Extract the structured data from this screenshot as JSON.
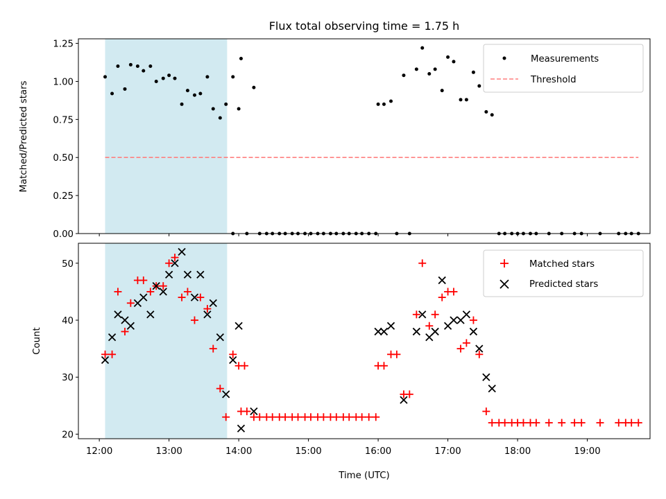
{
  "chart_data": [
    {
      "type": "scatter",
      "title": "Flux total observing time = 1.75 h",
      "ylabel": "Matched/Predicted stars",
      "xlabel": "",
      "xlim": [
        "11:42",
        "19:54"
      ],
      "ylim": [
        0,
        1.28
      ],
      "yticks": [
        "0.00",
        "0.25",
        "0.50",
        "0.75",
        "1.00",
        "1.25"
      ],
      "shaded_region": [
        "12:05",
        "13:50"
      ],
      "shaded_color": "#add8e6",
      "legend_position": "upper right",
      "series": [
        {
          "name": "Measurements",
          "marker": "dot",
          "color": "#000000",
          "points": [
            [
              "12:05",
              1.03
            ],
            [
              "12:11",
              0.92
            ],
            [
              "12:16",
              1.1
            ],
            [
              "12:22",
              0.95
            ],
            [
              "12:27",
              1.11
            ],
            [
              "12:33",
              1.1
            ],
            [
              "12:38",
              1.07
            ],
            [
              "12:44",
              1.1
            ],
            [
              "12:49",
              1.0
            ],
            [
              "12:55",
              1.02
            ],
            [
              "13:00",
              1.04
            ],
            [
              "13:05",
              1.02
            ],
            [
              "13:11",
              0.85
            ],
            [
              "13:16",
              0.94
            ],
            [
              "13:22",
              0.91
            ],
            [
              "13:27",
              0.92
            ],
            [
              "13:33",
              1.03
            ],
            [
              "13:38",
              0.82
            ],
            [
              "13:44",
              0.76
            ],
            [
              "13:49",
              0.85
            ],
            [
              "13:55",
              1.03
            ],
            [
              "14:00",
              0.82
            ],
            [
              "13:55",
              0.0
            ],
            [
              "14:02",
              1.15
            ],
            [
              "14:07",
              0.0
            ],
            [
              "14:13",
              0.96
            ],
            [
              "14:18",
              0.0
            ],
            [
              "14:24",
              0.0
            ],
            [
              "14:29",
              0.0
            ],
            [
              "14:35",
              0.0
            ],
            [
              "14:40",
              0.0
            ],
            [
              "14:46",
              0.0
            ],
            [
              "14:51",
              0.0
            ],
            [
              "14:57",
              0.0
            ],
            [
              "15:02",
              0.0
            ],
            [
              "15:08",
              0.0
            ],
            [
              "15:13",
              0.0
            ],
            [
              "15:19",
              0.0
            ],
            [
              "15:24",
              0.0
            ],
            [
              "15:30",
              0.0
            ],
            [
              "15:35",
              0.0
            ],
            [
              "15:41",
              0.0
            ],
            [
              "15:46",
              0.0
            ],
            [
              "15:52",
              0.0
            ],
            [
              "15:58",
              0.0
            ],
            [
              "16:00",
              0.85
            ],
            [
              "16:05",
              0.85
            ],
            [
              "16:11",
              0.87
            ],
            [
              "16:16",
              0.0
            ],
            [
              "16:22",
              1.04
            ],
            [
              "16:27",
              0.0
            ],
            [
              "16:33",
              1.08
            ],
            [
              "16:38",
              1.22
            ],
            [
              "16:44",
              1.05
            ],
            [
              "16:49",
              1.08
            ],
            [
              "16:55",
              0.94
            ],
            [
              "17:00",
              1.16
            ],
            [
              "17:05",
              1.13
            ],
            [
              "17:11",
              0.88
            ],
            [
              "17:16",
              0.88
            ],
            [
              "17:22",
              1.06
            ],
            [
              "17:27",
              0.97
            ],
            [
              "17:33",
              0.8
            ],
            [
              "17:38",
              0.78
            ],
            [
              "17:44",
              0.0
            ],
            [
              "17:49",
              0.0
            ],
            [
              "17:55",
              0.0
            ],
            [
              "18:00",
              0.0
            ],
            [
              "18:05",
              0.0
            ],
            [
              "18:11",
              0.0
            ],
            [
              "18:16",
              0.0
            ],
            [
              "18:27",
              0.0
            ],
            [
              "18:38",
              0.0
            ],
            [
              "18:49",
              0.0
            ],
            [
              "18:55",
              0.0
            ],
            [
              "19:11",
              0.0
            ],
            [
              "19:27",
              0.0
            ],
            [
              "19:33",
              0.0
            ],
            [
              "19:38",
              0.0
            ],
            [
              "19:44",
              0.0
            ]
          ]
        },
        {
          "name": "Threshold",
          "marker": "dashed-line",
          "color": "#ff7f7f",
          "points": [
            [
              "12:05",
              0.5
            ],
            [
              "19:44",
              0.5
            ]
          ]
        }
      ]
    },
    {
      "type": "scatter",
      "title": "",
      "ylabel": "Count",
      "xlabel": "Time (UTC)",
      "xlim": [
        "11:42",
        "19:54"
      ],
      "ylim": [
        19.2,
        53.5
      ],
      "yticks": [
        "20",
        "30",
        "40",
        "50"
      ],
      "xticks": [
        "12:00",
        "13:00",
        "14:00",
        "15:00",
        "16:00",
        "17:00",
        "18:00",
        "19:00"
      ],
      "shaded_region": [
        "12:05",
        "13:50"
      ],
      "shaded_color": "#add8e6",
      "legend_position": "upper right",
      "series": [
        {
          "name": "Matched stars",
          "marker": "plus",
          "color": "#ff0000",
          "points": [
            [
              "12:05",
              34
            ],
            [
              "12:11",
              34
            ],
            [
              "12:16",
              45
            ],
            [
              "12:22",
              38
            ],
            [
              "12:27",
              43
            ],
            [
              "12:33",
              47
            ],
            [
              "12:38",
              47
            ],
            [
              "12:44",
              45
            ],
            [
              "12:49",
              46
            ],
            [
              "12:55",
              46
            ],
            [
              "13:00",
              50
            ],
            [
              "13:05",
              51
            ],
            [
              "13:11",
              44
            ],
            [
              "13:16",
              45
            ],
            [
              "13:22",
              40
            ],
            [
              "13:27",
              44
            ],
            [
              "13:33",
              42
            ],
            [
              "13:38",
              35
            ],
            [
              "13:44",
              28
            ],
            [
              "13:49",
              23
            ],
            [
              "13:55",
              34
            ],
            [
              "14:00",
              32
            ],
            [
              "14:05",
              32
            ],
            [
              "14:02",
              24
            ],
            [
              "14:07",
              24
            ],
            [
              "14:13",
              23
            ],
            [
              "14:18",
              23
            ],
            [
              "14:24",
              23
            ],
            [
              "14:29",
              23
            ],
            [
              "14:35",
              23
            ],
            [
              "14:40",
              23
            ],
            [
              "14:46",
              23
            ],
            [
              "14:51",
              23
            ],
            [
              "14:57",
              23
            ],
            [
              "15:02",
              23
            ],
            [
              "15:08",
              23
            ],
            [
              "15:13",
              23
            ],
            [
              "15:19",
              23
            ],
            [
              "15:24",
              23
            ],
            [
              "15:30",
              23
            ],
            [
              "15:35",
              23
            ],
            [
              "15:41",
              23
            ],
            [
              "15:46",
              23
            ],
            [
              "15:52",
              23
            ],
            [
              "15:58",
              23
            ],
            [
              "16:00",
              32
            ],
            [
              "16:05",
              32
            ],
            [
              "16:11",
              34
            ],
            [
              "16:16",
              34
            ],
            [
              "16:22",
              27
            ],
            [
              "16:27",
              27
            ],
            [
              "16:33",
              41
            ],
            [
              "16:38",
              50
            ],
            [
              "16:44",
              39
            ],
            [
              "16:49",
              41
            ],
            [
              "16:55",
              44
            ],
            [
              "17:00",
              45
            ],
            [
              "17:05",
              45
            ],
            [
              "17:11",
              35
            ],
            [
              "17:16",
              36
            ],
            [
              "17:22",
              40
            ],
            [
              "17:27",
              34
            ],
            [
              "17:33",
              24
            ],
            [
              "17:38",
              22
            ],
            [
              "17:44",
              22
            ],
            [
              "17:49",
              22
            ],
            [
              "17:55",
              22
            ],
            [
              "18:00",
              22
            ],
            [
              "18:05",
              22
            ],
            [
              "18:11",
              22
            ],
            [
              "18:16",
              22
            ],
            [
              "18:27",
              22
            ],
            [
              "18:38",
              22
            ],
            [
              "18:49",
              22
            ],
            [
              "18:55",
              22
            ],
            [
              "19:11",
              22
            ],
            [
              "19:27",
              22
            ],
            [
              "19:33",
              22
            ],
            [
              "19:38",
              22
            ],
            [
              "19:44",
              22
            ]
          ]
        },
        {
          "name": "Predicted stars",
          "marker": "x",
          "color": "#000000",
          "points": [
            [
              "12:05",
              33
            ],
            [
              "12:11",
              37
            ],
            [
              "12:16",
              41
            ],
            [
              "12:22",
              40
            ],
            [
              "12:27",
              39
            ],
            [
              "12:33",
              43
            ],
            [
              "12:38",
              44
            ],
            [
              "12:44",
              41
            ],
            [
              "12:49",
              46
            ],
            [
              "12:55",
              45
            ],
            [
              "13:00",
              48
            ],
            [
              "13:05",
              50
            ],
            [
              "13:11",
              52
            ],
            [
              "13:16",
              48
            ],
            [
              "13:22",
              44
            ],
            [
              "13:27",
              48
            ],
            [
              "13:33",
              41
            ],
            [
              "13:38",
              43
            ],
            [
              "13:44",
              37
            ],
            [
              "13:49",
              27
            ],
            [
              "13:55",
              33
            ],
            [
              "14:00",
              39
            ],
            [
              "14:02",
              21
            ],
            [
              "14:13",
              24
            ],
            [
              "16:00",
              38
            ],
            [
              "16:05",
              38
            ],
            [
              "16:11",
              39
            ],
            [
              "16:22",
              26
            ],
            [
              "16:33",
              38
            ],
            [
              "16:38",
              41
            ],
            [
              "16:44",
              37
            ],
            [
              "16:49",
              38
            ],
            [
              "16:55",
              47
            ],
            [
              "17:00",
              39
            ],
            [
              "17:05",
              40
            ],
            [
              "17:11",
              40
            ],
            [
              "17:16",
              41
            ],
            [
              "17:22",
              38
            ],
            [
              "17:27",
              35
            ],
            [
              "17:33",
              30
            ],
            [
              "17:38",
              28
            ]
          ]
        }
      ]
    }
  ]
}
